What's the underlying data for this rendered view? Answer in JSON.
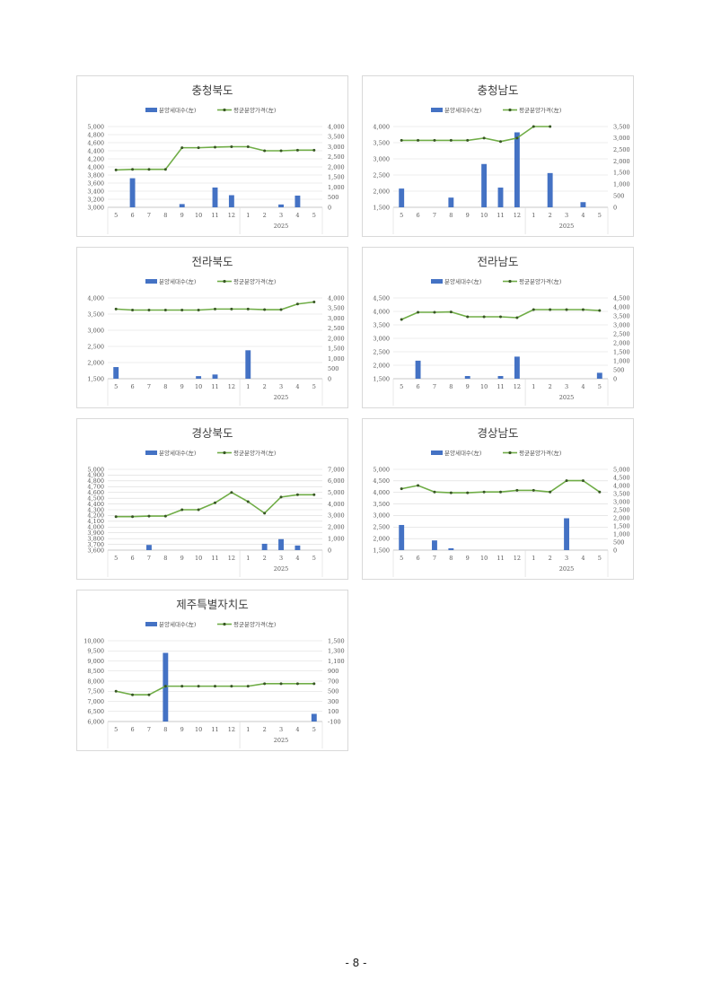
{
  "page": {
    "number": "- 8 -"
  },
  "legend": {
    "bar": "분양세대수(左)",
    "line": "평균분양가격(左)"
  },
  "chart_data": [
    {
      "type": "bar+line",
      "title": "충청북도",
      "x": [
        "5",
        "6",
        "7",
        "8",
        "9",
        "10",
        "11",
        "12",
        "1",
        "2",
        "3",
        "4",
        "5"
      ],
      "year_label": "2025",
      "left_axis": {
        "min": 3000,
        "max": 5000,
        "ticks": [
          "3,000",
          "3,200",
          "3,400",
          "3,600",
          "3,800",
          "4,000",
          "4,200",
          "4,400",
          "4,600",
          "4,800",
          "5,000"
        ]
      },
      "right_axis": {
        "min": 0,
        "max": 4000,
        "ticks": [
          "0",
          "500",
          "1,000",
          "1,500",
          "2,000",
          "2,500",
          "3,000",
          "3,500",
          "4,000"
        ]
      },
      "bars_axis": "left",
      "series": [
        {
          "name": "분양세대수(左)",
          "kind": "bar",
          "values": [
            null,
            3720,
            null,
            null,
            3080,
            null,
            3490,
            3300,
            null,
            null,
            3070,
            3290,
            null
          ]
        },
        {
          "name": "평균분양가격(左)",
          "kind": "line",
          "values": [
            1850,
            1880,
            1880,
            1880,
            2950,
            2950,
            2980,
            3000,
            3000,
            2800,
            2800,
            2830,
            2830
          ]
        }
      ]
    },
    {
      "type": "bar+line",
      "title": "충청남도",
      "x": [
        "5",
        "6",
        "7",
        "8",
        "9",
        "10",
        "11",
        "12",
        "1",
        "2",
        "3",
        "4",
        "5"
      ],
      "year_label": "2025",
      "left_axis": {
        "min": 1500,
        "max": 4000,
        "ticks": [
          "1,500",
          "2,000",
          "2,500",
          "3,000",
          "3,500",
          "4,000"
        ]
      },
      "right_axis": {
        "min": 0,
        "max": 3500,
        "ticks": [
          "0",
          "500",
          "1,000",
          "1,500",
          "2,000",
          "2,500",
          "3,000",
          "3,500"
        ]
      },
      "bars_axis": "left",
      "series": [
        {
          "name": "분양세대수(左)",
          "kind": "bar",
          "values": [
            2080,
            null,
            null,
            1800,
            null,
            2840,
            2110,
            3820,
            null,
            2560,
            null,
            1660,
            null
          ]
        },
        {
          "name": "평균분양가격(左)",
          "kind": "line",
          "values": [
            2900,
            2900,
            2900,
            2900,
            2900,
            3000,
            2850,
            3000,
            3500,
            3500,
            null,
            null,
            null
          ]
        }
      ]
    },
    {
      "type": "bar+line",
      "title": "전라북도",
      "x": [
        "5",
        "6",
        "7",
        "8",
        "9",
        "10",
        "11",
        "12",
        "1",
        "2",
        "3",
        "4",
        "5"
      ],
      "year_label": "2025",
      "left_axis": {
        "min": 1500,
        "max": 4000,
        "ticks": [
          "1,500",
          "2,000",
          "2,500",
          "3,000",
          "3,500",
          "4,000"
        ]
      },
      "right_axis": {
        "min": 0,
        "max": 4000,
        "ticks": [
          "0",
          "500",
          "1,000",
          "1,500",
          "2,000",
          "2,500",
          "3,000",
          "3,500",
          "4,000"
        ]
      },
      "bars_axis": "left",
      "series": [
        {
          "name": "분양세대수(左)",
          "kind": "bar",
          "values": [
            1860,
            null,
            null,
            null,
            null,
            1580,
            1630,
            null,
            2380,
            null,
            null,
            null,
            null
          ]
        },
        {
          "name": "평균분양가격(左)",
          "kind": "line",
          "values": [
            3450,
            3400,
            3400,
            3400,
            3400,
            3400,
            3450,
            3450,
            3450,
            3420,
            3420,
            3700,
            3800
          ]
        }
      ]
    },
    {
      "type": "bar+line",
      "title": "전라남도",
      "x": [
        "5",
        "6",
        "7",
        "8",
        "9",
        "10",
        "11",
        "12",
        "1",
        "2",
        "3",
        "4",
        "5"
      ],
      "year_label": "2025",
      "left_axis": {
        "min": 1500,
        "max": 4500,
        "ticks": [
          "1,500",
          "2,000",
          "2,500",
          "3,000",
          "3,500",
          "4,000",
          "4,500"
        ]
      },
      "right_axis": {
        "min": 0,
        "max": 4500,
        "ticks": [
          "0",
          "500",
          "1,000",
          "1,500",
          "2,000",
          "2,500",
          "3,000",
          "3,500",
          "4,000",
          "4,500"
        ]
      },
      "bars_axis": "left",
      "series": [
        {
          "name": "분양세대수(左)",
          "kind": "bar",
          "values": [
            null,
            2170,
            null,
            null,
            1600,
            null,
            1600,
            2320,
            null,
            null,
            null,
            null,
            1720
          ]
        },
        {
          "name": "평균분양가격(左)",
          "kind": "line",
          "values": [
            3300,
            3700,
            3700,
            3720,
            3450,
            3450,
            3450,
            3400,
            3850,
            3850,
            3850,
            3850,
            3800
          ]
        }
      ]
    },
    {
      "type": "bar+line",
      "title": "경상북도",
      "x": [
        "5",
        "6",
        "7",
        "8",
        "9",
        "10",
        "11",
        "12",
        "1",
        "2",
        "3",
        "4",
        "5"
      ],
      "year_label": "2025",
      "left_axis": {
        "min": 3600,
        "max": 5000,
        "ticks": [
          "3,600",
          "3,700",
          "3,800",
          "3,900",
          "4,000",
          "4,100",
          "4,200",
          "4,300",
          "4,400",
          "4,500",
          "4,600",
          "4,700",
          "4,800",
          "4,900",
          "5,000"
        ]
      },
      "right_axis": {
        "min": 0,
        "max": 7000,
        "ticks": [
          "0",
          "1,000",
          "2,000",
          "3,000",
          "4,000",
          "5,000",
          "6,000",
          "7,000"
        ]
      },
      "bars_axis": "left",
      "series": [
        {
          "name": "분양세대수(左)",
          "kind": "bar",
          "values": [
            null,
            null,
            3690,
            null,
            null,
            null,
            null,
            null,
            null,
            3710,
            3790,
            3680,
            null
          ]
        },
        {
          "name": "평균분양가격(左)",
          "kind": "line",
          "values": [
            2900,
            2900,
            2950,
            2950,
            3500,
            3500,
            4100,
            5000,
            4200,
            3200,
            4600,
            4800,
            4800
          ]
        }
      ]
    },
    {
      "type": "bar+line",
      "title": "경상남도",
      "x": [
        "5",
        "6",
        "7",
        "8",
        "9",
        "10",
        "11",
        "12",
        "1",
        "2",
        "3",
        "4",
        "5"
      ],
      "year_label": "2025",
      "left_axis": {
        "min": 1500,
        "max": 5000,
        "ticks": [
          "1,500",
          "2,000",
          "2,500",
          "3,000",
          "3,500",
          "4,000",
          "4,500",
          "5,000"
        ]
      },
      "right_axis": {
        "min": 0,
        "max": 5000,
        "ticks": [
          "0",
          "500",
          "1,000",
          "1,500",
          "2,000",
          "2,500",
          "3,000",
          "3,500",
          "4,000",
          "4,500",
          "5,000"
        ]
      },
      "bars_axis": "left",
      "series": [
        {
          "name": "분양세대수(左)",
          "kind": "bar",
          "values": [
            2590,
            null,
            1920,
            1580,
            null,
            null,
            null,
            null,
            null,
            null,
            2880,
            null,
            null
          ]
        },
        {
          "name": "평균분양가격(左)",
          "kind": "line",
          "values": [
            3800,
            4000,
            3600,
            3550,
            3550,
            3600,
            3600,
            3700,
            3700,
            3600,
            4300,
            4300,
            3600
          ]
        }
      ]
    },
    {
      "type": "bar+line",
      "title": "제주특별자치도",
      "x": [
        "5",
        "6",
        "7",
        "8",
        "9",
        "10",
        "11",
        "12",
        "1",
        "2",
        "3",
        "4",
        "5"
      ],
      "year_label": "2025",
      "left_axis": {
        "min": 6000,
        "max": 10000,
        "ticks": [
          "6,000",
          "6,500",
          "7,000",
          "7,500",
          "8,000",
          "8,500",
          "9,000",
          "9,500",
          "10,000"
        ]
      },
      "right_axis": {
        "min": -100,
        "max": 1500,
        "ticks": [
          "-100",
          "100",
          "300",
          "500",
          "700",
          "900",
          "1,100",
          "1,300",
          "1,500"
        ]
      },
      "bars_axis": "left",
      "series": [
        {
          "name": "분양세대수(左)",
          "kind": "bar",
          "values": [
            null,
            null,
            null,
            9400,
            null,
            null,
            null,
            null,
            null,
            null,
            null,
            null,
            6380
          ]
        },
        {
          "name": "평균분양가격(左)",
          "kind": "line",
          "values": [
            500,
            430,
            430,
            600,
            600,
            600,
            600,
            600,
            600,
            650,
            650,
            650,
            650
          ]
        }
      ]
    }
  ],
  "colors": {
    "bar": "#4472C4",
    "line": "#70AD47",
    "marker": "#375623",
    "grid": "#d9d9d9",
    "axis": "#bfbfbf"
  }
}
